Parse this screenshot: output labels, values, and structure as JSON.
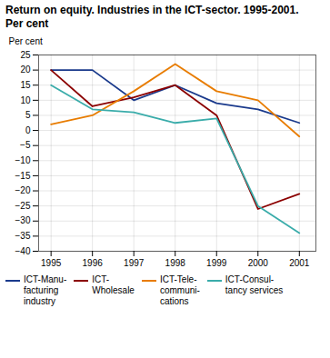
{
  "chart_data": {
    "type": "line",
    "title": "Return on equity. Industries in the ICT-sector. 1995-2001.\nPer cent",
    "y_label": "Per cent",
    "x": [
      1995,
      1996,
      1997,
      1998,
      1999,
      2000,
      2001
    ],
    "series": [
      {
        "name": "ICT-Manu-\nfacturing\nindustry",
        "color": "#1a3a8c",
        "values": [
          20,
          20,
          10,
          15,
          9,
          7,
          2.5
        ]
      },
      {
        "name": "ICT-\nWholesale",
        "color": "#8b0000",
        "values": [
          20,
          8,
          11,
          15,
          5,
          -26,
          -21
        ]
      },
      {
        "name": "ICT-Tele-\ncommuni-\ncations",
        "color": "#e87c00",
        "values": [
          2,
          5,
          13,
          22,
          13,
          10,
          -2
        ]
      },
      {
        "name": "ICT-Consul-\ntancy services",
        "color": "#3aacaa",
        "values": [
          15,
          7,
          6,
          2.5,
          4,
          -25,
          -34
        ]
      }
    ],
    "xlim": [
      1994.7,
      2001.4
    ],
    "xticks": [
      1995,
      1996,
      1997,
      1998,
      1999,
      2000,
      2001
    ],
    "ylim": [
      -40,
      25
    ],
    "yticks": [
      -40,
      -35,
      -30,
      -25,
      -20,
      -15,
      -10,
      -5,
      0,
      5,
      10,
      15,
      20,
      25
    ],
    "grid": true,
    "legend": "bottom"
  }
}
